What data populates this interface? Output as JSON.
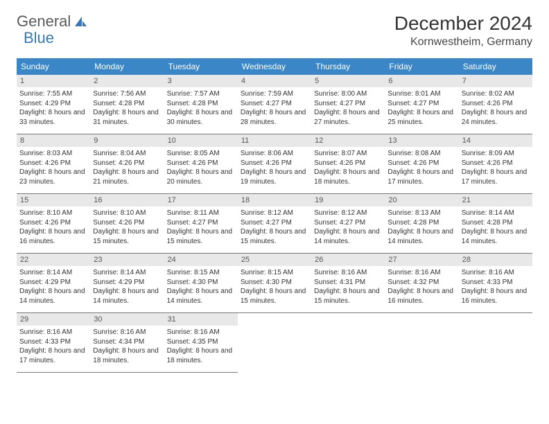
{
  "logo": {
    "text1": "General",
    "text2": "Blue"
  },
  "header": {
    "month": "December 2024",
    "location": "Kornwestheim, Germany"
  },
  "colors": {
    "headerBg": "#3b86c6",
    "headerText": "#ffffff",
    "dayNumBg": "#e8e8e8",
    "border": "#3b86c6",
    "logoGray": "#5a5a5a",
    "logoBlue": "#2f78bd"
  },
  "dayNames": [
    "Sunday",
    "Monday",
    "Tuesday",
    "Wednesday",
    "Thursday",
    "Friday",
    "Saturday"
  ],
  "days": [
    {
      "n": 1,
      "sr": "7:55 AM",
      "ss": "4:29 PM",
      "dl": "8 hours and 33 minutes."
    },
    {
      "n": 2,
      "sr": "7:56 AM",
      "ss": "4:28 PM",
      "dl": "8 hours and 31 minutes."
    },
    {
      "n": 3,
      "sr": "7:57 AM",
      "ss": "4:28 PM",
      "dl": "8 hours and 30 minutes."
    },
    {
      "n": 4,
      "sr": "7:59 AM",
      "ss": "4:27 PM",
      "dl": "8 hours and 28 minutes."
    },
    {
      "n": 5,
      "sr": "8:00 AM",
      "ss": "4:27 PM",
      "dl": "8 hours and 27 minutes."
    },
    {
      "n": 6,
      "sr": "8:01 AM",
      "ss": "4:27 PM",
      "dl": "8 hours and 25 minutes."
    },
    {
      "n": 7,
      "sr": "8:02 AM",
      "ss": "4:26 PM",
      "dl": "8 hours and 24 minutes."
    },
    {
      "n": 8,
      "sr": "8:03 AM",
      "ss": "4:26 PM",
      "dl": "8 hours and 23 minutes."
    },
    {
      "n": 9,
      "sr": "8:04 AM",
      "ss": "4:26 PM",
      "dl": "8 hours and 21 minutes."
    },
    {
      "n": 10,
      "sr": "8:05 AM",
      "ss": "4:26 PM",
      "dl": "8 hours and 20 minutes."
    },
    {
      "n": 11,
      "sr": "8:06 AM",
      "ss": "4:26 PM",
      "dl": "8 hours and 19 minutes."
    },
    {
      "n": 12,
      "sr": "8:07 AM",
      "ss": "4:26 PM",
      "dl": "8 hours and 18 minutes."
    },
    {
      "n": 13,
      "sr": "8:08 AM",
      "ss": "4:26 PM",
      "dl": "8 hours and 17 minutes."
    },
    {
      "n": 14,
      "sr": "8:09 AM",
      "ss": "4:26 PM",
      "dl": "8 hours and 17 minutes."
    },
    {
      "n": 15,
      "sr": "8:10 AM",
      "ss": "4:26 PM",
      "dl": "8 hours and 16 minutes."
    },
    {
      "n": 16,
      "sr": "8:10 AM",
      "ss": "4:26 PM",
      "dl": "8 hours and 15 minutes."
    },
    {
      "n": 17,
      "sr": "8:11 AM",
      "ss": "4:27 PM",
      "dl": "8 hours and 15 minutes."
    },
    {
      "n": 18,
      "sr": "8:12 AM",
      "ss": "4:27 PM",
      "dl": "8 hours and 15 minutes."
    },
    {
      "n": 19,
      "sr": "8:12 AM",
      "ss": "4:27 PM",
      "dl": "8 hours and 14 minutes."
    },
    {
      "n": 20,
      "sr": "8:13 AM",
      "ss": "4:28 PM",
      "dl": "8 hours and 14 minutes."
    },
    {
      "n": 21,
      "sr": "8:14 AM",
      "ss": "4:28 PM",
      "dl": "8 hours and 14 minutes."
    },
    {
      "n": 22,
      "sr": "8:14 AM",
      "ss": "4:29 PM",
      "dl": "8 hours and 14 minutes."
    },
    {
      "n": 23,
      "sr": "8:14 AM",
      "ss": "4:29 PM",
      "dl": "8 hours and 14 minutes."
    },
    {
      "n": 24,
      "sr": "8:15 AM",
      "ss": "4:30 PM",
      "dl": "8 hours and 14 minutes."
    },
    {
      "n": 25,
      "sr": "8:15 AM",
      "ss": "4:30 PM",
      "dl": "8 hours and 15 minutes."
    },
    {
      "n": 26,
      "sr": "8:16 AM",
      "ss": "4:31 PM",
      "dl": "8 hours and 15 minutes."
    },
    {
      "n": 27,
      "sr": "8:16 AM",
      "ss": "4:32 PM",
      "dl": "8 hours and 16 minutes."
    },
    {
      "n": 28,
      "sr": "8:16 AM",
      "ss": "4:33 PM",
      "dl": "8 hours and 16 minutes."
    },
    {
      "n": 29,
      "sr": "8:16 AM",
      "ss": "4:33 PM",
      "dl": "8 hours and 17 minutes."
    },
    {
      "n": 30,
      "sr": "8:16 AM",
      "ss": "4:34 PM",
      "dl": "8 hours and 18 minutes."
    },
    {
      "n": 31,
      "sr": "8:16 AM",
      "ss": "4:35 PM",
      "dl": "8 hours and 18 minutes."
    }
  ],
  "labels": {
    "sunrise": "Sunrise:",
    "sunset": "Sunset:",
    "daylight": "Daylight:"
  }
}
